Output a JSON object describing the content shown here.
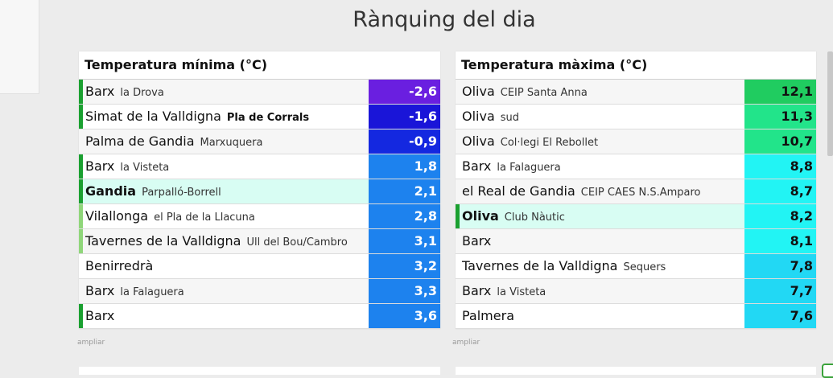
{
  "page": {
    "title": "Rànquing del dia"
  },
  "min_table": {
    "title": "Temperatura mínima (°C)",
    "ampliar": "ampliar",
    "rows": [
      {
        "place": "Barx",
        "sub": "la Drova",
        "value": "-2,6",
        "bg": "#6a1fe0",
        "fg": "#ffffff",
        "bar": "#1aa030",
        "highlight": false
      },
      {
        "place": "Simat de la Valldigna",
        "sub": "Pla de Corrals",
        "value": "-1,6",
        "bg": "#1a15d8",
        "fg": "#ffffff",
        "bar": "#1aa030",
        "highlight": false,
        "sub_bold": true
      },
      {
        "place": "Palma de Gandia",
        "sub": "Marxuquera",
        "value": "-0,9",
        "bg": "#1428e0",
        "fg": "#ffffff",
        "bar": "",
        "highlight": false
      },
      {
        "place": "Barx",
        "sub": "la Visteta",
        "value": "1,8",
        "bg": "#1d82ee",
        "fg": "#ffffff",
        "bar": "#1aa030",
        "highlight": false
      },
      {
        "place": "Gandia",
        "sub": "Parpalló-Borrell",
        "value": "2,1",
        "bg": "#1d82ee",
        "fg": "#ffffff",
        "bar": "#1aa030",
        "highlight": true,
        "main_bold": true
      },
      {
        "place": "Vilallonga",
        "sub": "el Pla de la Llacuna",
        "value": "2,8",
        "bg": "#1d82ee",
        "fg": "#ffffff",
        "bar": "#8fd67a",
        "highlight": false
      },
      {
        "place": "Tavernes de la Valldigna",
        "sub": "Ull del Bou/Cambro",
        "value": "3,1",
        "bg": "#1d82ee",
        "fg": "#ffffff",
        "bar": "#8fd67a",
        "highlight": false
      },
      {
        "place": "Benirredrà",
        "sub": "",
        "value": "3,2",
        "bg": "#1d82ee",
        "fg": "#ffffff",
        "bar": "",
        "highlight": false
      },
      {
        "place": "Barx",
        "sub": "la Falaguera",
        "value": "3,3",
        "bg": "#1d82ee",
        "fg": "#ffffff",
        "bar": "",
        "highlight": false
      },
      {
        "place": "Barx",
        "sub": "",
        "value": "3,6",
        "bg": "#1d82ee",
        "fg": "#ffffff",
        "bar": "#1aa030",
        "highlight": false
      }
    ]
  },
  "max_table": {
    "title": "Temperatura màxima (°C)",
    "ampliar": "ampliar",
    "rows": [
      {
        "place": "Oliva",
        "sub": "CEIP Santa Anna",
        "value": "12,1",
        "bg": "#20cc60",
        "fg": "#111111",
        "bar": "",
        "highlight": false
      },
      {
        "place": "Oliva",
        "sub": "sud",
        "value": "11,3",
        "bg": "#22e48a",
        "fg": "#111111",
        "bar": "",
        "highlight": false
      },
      {
        "place": "Oliva",
        "sub": "Col·legi El Rebollet",
        "value": "10,7",
        "bg": "#22e48a",
        "fg": "#111111",
        "bar": "",
        "highlight": false
      },
      {
        "place": "Barx",
        "sub": "la Falaguera",
        "value": "8,8",
        "bg": "#22f4f4",
        "fg": "#111111",
        "bar": "",
        "highlight": false
      },
      {
        "place": "el Real de Gandia",
        "sub": "CEIP CAES N.S.Amparo",
        "value": "8,7",
        "bg": "#22f4f4",
        "fg": "#111111",
        "bar": "",
        "highlight": false
      },
      {
        "place": "Oliva",
        "sub": "Club Nàutic",
        "value": "8,2",
        "bg": "#22f4f4",
        "fg": "#111111",
        "bar": "#1aa030",
        "highlight": true,
        "main_bold": true
      },
      {
        "place": "Barx",
        "sub": "",
        "value": "8,1",
        "bg": "#22f4f4",
        "fg": "#111111",
        "bar": "",
        "highlight": false
      },
      {
        "place": "Tavernes de la Valldigna",
        "sub": "Sequers",
        "value": "7,8",
        "bg": "#22d8f4",
        "fg": "#111111",
        "bar": "",
        "highlight": false
      },
      {
        "place": "Barx",
        "sub": "la Visteta",
        "value": "7,7",
        "bg": "#22d8f4",
        "fg": "#111111",
        "bar": "",
        "highlight": false
      },
      {
        "place": "Palmera",
        "sub": "",
        "value": "7,6",
        "bg": "#22d8f4",
        "fg": "#111111",
        "bar": "",
        "highlight": false
      }
    ]
  }
}
